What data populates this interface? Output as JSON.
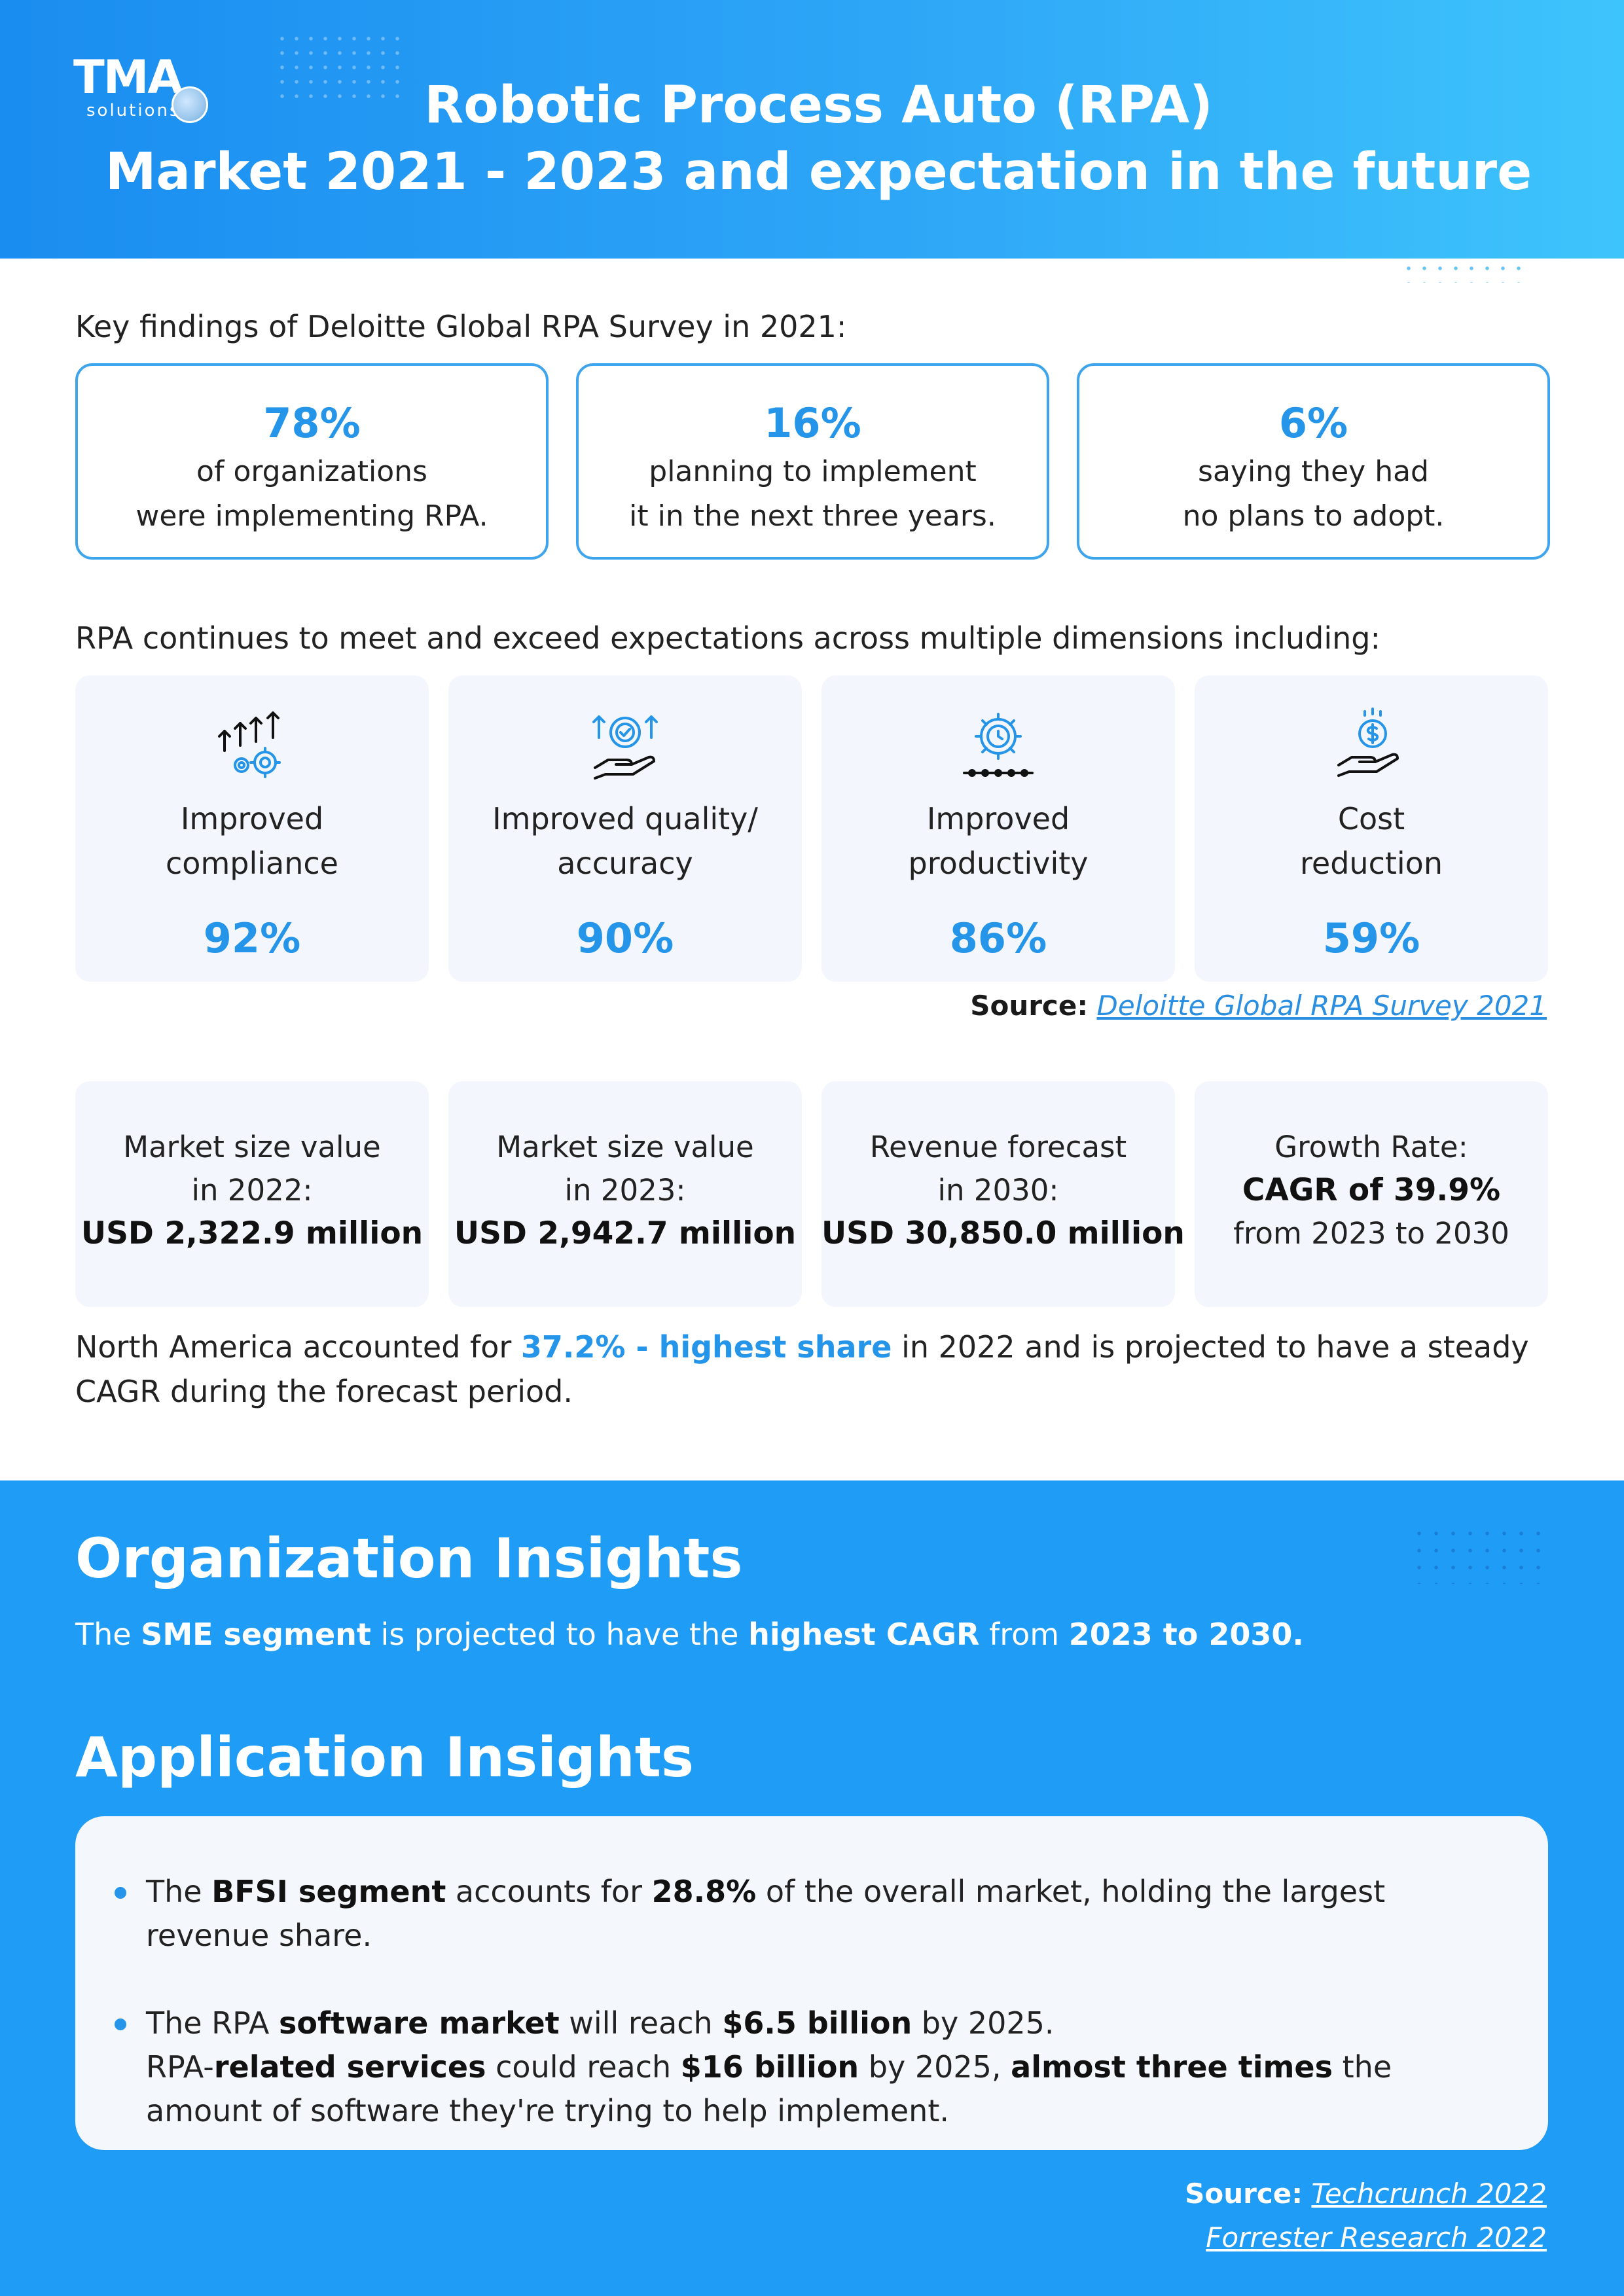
{
  "header": {
    "logo_main": "TMA",
    "logo_sub": "solutions",
    "title_line1": "Robotic Process Auto (RPA)",
    "title_line2": "Market 2021 - 2023 and expectation in the future"
  },
  "key_findings": {
    "label": "Key findings of Deloitte Global RPA Survey in 2021:",
    "cards": [
      {
        "pct": "78%",
        "line1": "of organizations",
        "line2": "were implementing RPA."
      },
      {
        "pct": "16%",
        "line1": "planning to implement",
        "line2": "it in the next three years."
      },
      {
        "pct": "6%",
        "line1": "saying they had",
        "line2": "no plans to adopt."
      }
    ]
  },
  "dimensions": {
    "label": "RPA continues to meet and exceed expectations across multiple dimensions including:",
    "cards": [
      {
        "icon": "arrows-gears-icon",
        "line1": "Improved",
        "line2": "compliance",
        "pct": "92%"
      },
      {
        "icon": "quality-badge-hand-icon",
        "line1": "Improved quality/",
        "line2": "accuracy",
        "pct": "90%"
      },
      {
        "icon": "gear-clock-icon",
        "line1": "Improved",
        "line2": "productivity",
        "pct": "86%"
      },
      {
        "icon": "coin-hand-icon",
        "line1": "Cost",
        "line2": "reduction",
        "pct": "59%"
      }
    ],
    "source_label": "Source:",
    "source_link": "Deloitte Global RPA Survey 2021"
  },
  "market": {
    "cards": [
      {
        "line1": "Market size value",
        "line2": "in 2022:",
        "line3": "USD 2,322.9 million"
      },
      {
        "line1": "Market size value",
        "line2": "in 2023:",
        "line3": "USD 2,942.7 million"
      },
      {
        "line1": "Revenue forecast",
        "line2": "in 2030:",
        "line3": "USD 30,850.0 million"
      },
      {
        "line1": "Growth Rate:",
        "line2": "CAGR of 39.9%",
        "line3": "from 2023 to 2030"
      }
    ],
    "na_pre": "North America accounted for ",
    "na_highlight": "37.2% - highest share",
    "na_post": " in 2022 and is projected to have a steady CAGR during the forecast period."
  },
  "org_insights": {
    "title": "Organization Insights",
    "t1": "The ",
    "b1": "SME segment",
    "t2": " is projected to have the ",
    "b2": "highest CAGR",
    "t3": " from ",
    "b3": "2023 to 2030."
  },
  "app_insights": {
    "title": "Application Insights",
    "bullet1": {
      "t1": "The ",
      "b1": "BFSI segment",
      "t2": " accounts for ",
      "b2": "28.8%",
      "t3": " of the overall market, holding the largest revenue share."
    },
    "bullet2": {
      "t1": "The RPA ",
      "b1": "software market",
      "t2": " will reach ",
      "b2": "$6.5 billion",
      "t3": " by 2025.",
      "t4": "RPA-",
      "b3": "related services",
      "t5": " could reach ",
      "b4": "$16 billion",
      "t6": " by 2025, ",
      "b5": "almost three times",
      "t7": " the amount of software they're trying to help implement."
    }
  },
  "footer_source": {
    "label": "Source:",
    "link1": "Techcrunch 2022",
    "link2": "Forrester Research 2022"
  },
  "colors": {
    "accent": "#2495e8",
    "header_start": "#1a8df0",
    "header_end": "#3ec4fc",
    "bottom_bg": "#1f9cf5",
    "card_bg": "#f3f6fc",
    "card_border": "#3ea4ec"
  }
}
